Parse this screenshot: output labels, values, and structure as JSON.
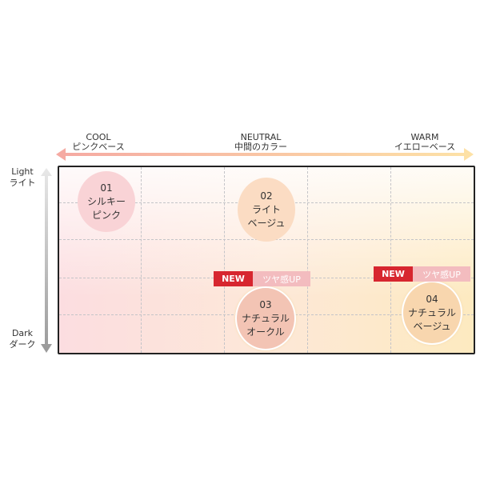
{
  "axes": {
    "cool": {
      "title": "COOL",
      "sub": "ピンクベース"
    },
    "neutral": {
      "title": "NEUTRAL",
      "sub": "中間のカラー"
    },
    "warm": {
      "title": "WARM",
      "sub": "イエローベース"
    },
    "light": {
      "title": "Light",
      "sub": "ライト"
    },
    "dark": {
      "title": "Dark",
      "sub": "ダーク"
    }
  },
  "shades": [
    {
      "num": "01",
      "name1": "シルキー",
      "name2": "ピンク",
      "color": "#f9d3d6"
    },
    {
      "num": "02",
      "name1": "ライト",
      "name2": "ベージュ",
      "color": "#fbdcc3"
    },
    {
      "num": "03",
      "name1": "ナチュラル",
      "name2": "オークル",
      "color": "#f3c4b4",
      "badge_new": "NEW",
      "badge_tag": "ツヤ感UP"
    },
    {
      "num": "04",
      "name1": "ナチュラル",
      "name2": "ベージュ",
      "color": "#f8d6ae",
      "badge_new": "NEW",
      "badge_tag": "ツヤ感UP"
    }
  ],
  "colors": {
    "new_badge": "#d7262f",
    "tag_badge": "#f3bcbf",
    "arrow_cool": "#f5a9a2",
    "arrow_warm": "#fde2a6"
  }
}
